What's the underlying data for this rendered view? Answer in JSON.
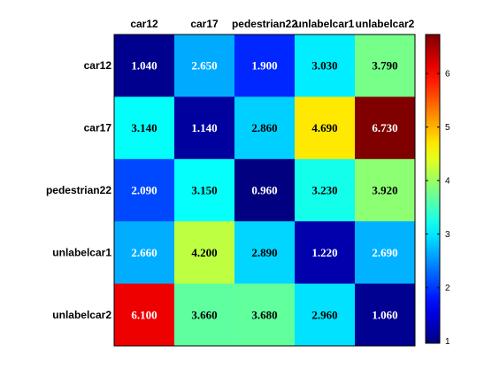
{
  "chart_data": {
    "type": "heatmap",
    "title": "",
    "xlabel": "",
    "ylabel": "",
    "columns": [
      "car12",
      "car17",
      "pedestrian22",
      "unlabelcar1",
      "unlabelcar2"
    ],
    "rows": [
      "car12",
      "car17",
      "pedestrian22",
      "unlabelcar1",
      "unlabelcar2"
    ],
    "values": [
      [
        1.04,
        2.65,
        1.9,
        3.03,
        3.79
      ],
      [
        3.14,
        1.14,
        2.86,
        4.69,
        6.73
      ],
      [
        2.09,
        3.15,
        0.96,
        3.23,
        3.92
      ],
      [
        2.66,
        4.2,
        2.89,
        1.22,
        2.69
      ],
      [
        6.1,
        3.66,
        3.68,
        2.96,
        1.06
      ]
    ],
    "cell_labels": [
      [
        "1.040",
        "2.650",
        "1.900",
        "3.030",
        "3.790"
      ],
      [
        "3.140",
        "1.140",
        "2.860",
        "4.690",
        "6.730"
      ],
      [
        "2.090",
        "3.150",
        "0.960",
        "3.230",
        "3.920"
      ],
      [
        "2.660",
        "4.200",
        "2.890",
        "1.220",
        "2.690"
      ],
      [
        "6.100",
        "3.660",
        "3.680",
        "2.960",
        "1.060"
      ]
    ],
    "colorscale": "jet",
    "colorbar": {
      "range": [
        0.96,
        6.73
      ],
      "ticks": [
        1,
        2,
        3,
        4,
        5,
        6
      ],
      "tick_labels": [
        "1",
        "2",
        "3",
        "4",
        "5",
        "6"
      ]
    },
    "grid": false,
    "legend": "colorbar-right"
  }
}
